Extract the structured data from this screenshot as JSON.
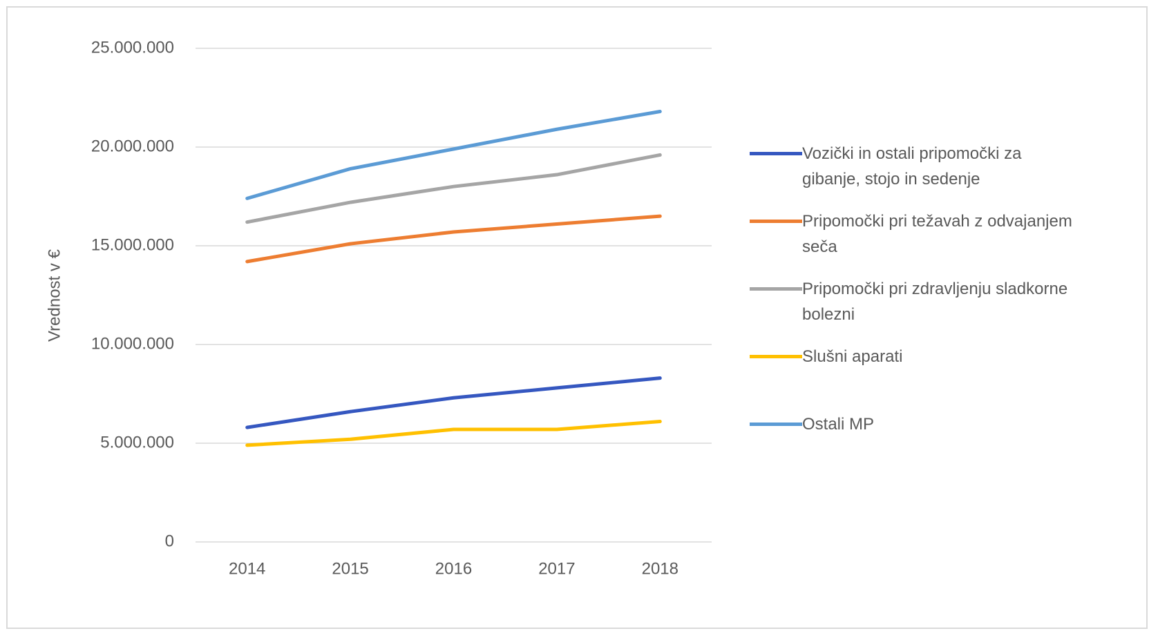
{
  "chart_data": {
    "type": "line",
    "ylabel": "Vrednost v €",
    "categories": [
      "2014",
      "2015",
      "2016",
      "2017",
      "2018"
    ],
    "series": [
      {
        "name": "Vozički in ostali pripomočki za gibanje, stojo in sedenje",
        "color": "#3557c0",
        "values": [
          5800000,
          6600000,
          7300000,
          7800000,
          8300000
        ]
      },
      {
        "name": "Pripomočki pri težavah z odvajanjem seča",
        "color": "#ed7d31",
        "values": [
          14200000,
          15100000,
          15700000,
          16100000,
          16500000
        ]
      },
      {
        "name": "Pripomočki pri zdravljenju sladkorne bolezni",
        "color": "#a5a5a5",
        "values": [
          16200000,
          17200000,
          18000000,
          18600000,
          19600000
        ]
      },
      {
        "name": "Slušni aparati",
        "color": "#ffc000",
        "values": [
          4900000,
          5200000,
          5700000,
          5700000,
          6100000
        ]
      },
      {
        "name": "Ostali MP",
        "color": "#5b9bd5",
        "values": [
          17400000,
          18900000,
          19900000,
          20900000,
          21800000
        ]
      }
    ],
    "ylim": [
      0,
      25000000
    ],
    "yticks": [
      0,
      {
        "value": 5000000,
        "label": "5.000.000"
      },
      {
        "value": 10000000,
        "label": "10.000.000"
      },
      {
        "value": 15000000,
        "label": "15.000.000"
      },
      {
        "value": 20000000,
        "label": "20.000.000"
      },
      {
        "value": 25000000,
        "label": "25.000.000"
      }
    ],
    "grid": true,
    "legend": "right"
  }
}
